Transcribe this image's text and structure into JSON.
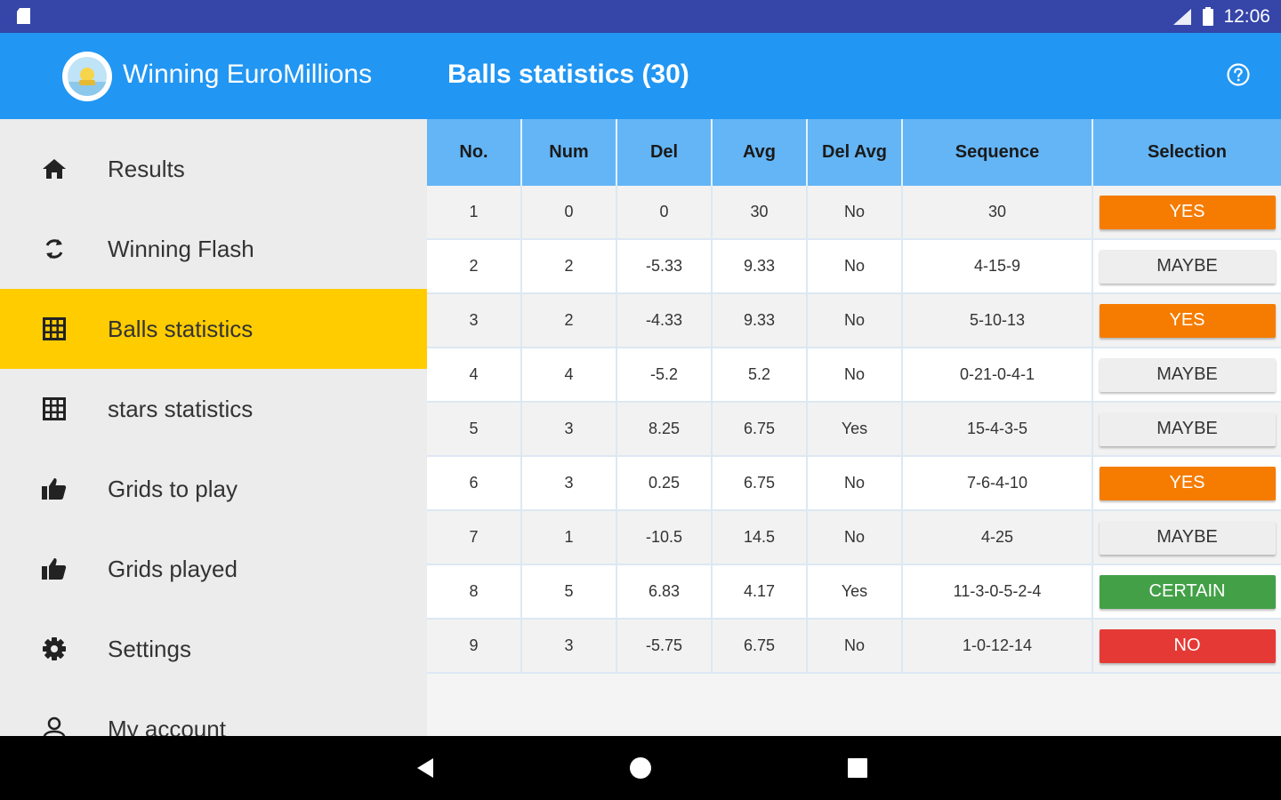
{
  "status_bar": {
    "time": "12:06"
  },
  "app_bar": {
    "app_name": "Winning EuroMillions",
    "screen_title": "Balls statistics (30)"
  },
  "drawer": {
    "items": [
      {
        "label": "Results",
        "icon": "home-icon"
      },
      {
        "label": "Winning Flash",
        "icon": "refresh-icon"
      },
      {
        "label": "Balls statistics",
        "icon": "grid-icon",
        "active": true
      },
      {
        "label": "stars statistics",
        "icon": "grid-icon"
      },
      {
        "label": "Grids to play",
        "icon": "thumb-up-icon"
      },
      {
        "label": "Grids played",
        "icon": "thumb-up-icon"
      },
      {
        "label": "Settings",
        "icon": "gear-icon"
      },
      {
        "label": "My account",
        "icon": "person-icon"
      }
    ]
  },
  "table": {
    "headers": [
      "No.",
      "Num",
      "Del",
      "Avg",
      "Del Avg",
      "Sequence",
      "Selection"
    ],
    "rows": [
      {
        "no": "1",
        "num": "0",
        "del": "0",
        "avg": "30",
        "del_avg": "No",
        "sequence": "30",
        "selection": "YES"
      },
      {
        "no": "2",
        "num": "2",
        "del": "-5.33",
        "avg": "9.33",
        "del_avg": "No",
        "sequence": "4-15-9",
        "selection": "MAYBE"
      },
      {
        "no": "3",
        "num": "2",
        "del": "-4.33",
        "avg": "9.33",
        "del_avg": "No",
        "sequence": "5-10-13",
        "selection": "YES"
      },
      {
        "no": "4",
        "num": "4",
        "del": "-5.2",
        "avg": "5.2",
        "del_avg": "No",
        "sequence": "0-21-0-4-1",
        "selection": "MAYBE"
      },
      {
        "no": "5",
        "num": "3",
        "del": "8.25",
        "avg": "6.75",
        "del_avg": "Yes",
        "sequence": "15-4-3-5",
        "selection": "MAYBE"
      },
      {
        "no": "6",
        "num": "3",
        "del": "0.25",
        "avg": "6.75",
        "del_avg": "No",
        "sequence": "7-6-4-10",
        "selection": "YES"
      },
      {
        "no": "7",
        "num": "1",
        "del": "-10.5",
        "avg": "14.5",
        "del_avg": "No",
        "sequence": "4-25",
        "selection": "MAYBE"
      },
      {
        "no": "8",
        "num": "5",
        "del": "6.83",
        "avg": "4.17",
        "del_avg": "Yes",
        "sequence": "11-3-0-5-2-4",
        "selection": "CERTAIN"
      },
      {
        "no": "9",
        "num": "3",
        "del": "-5.75",
        "avg": "6.75",
        "del_avg": "No",
        "sequence": "1-0-12-14",
        "selection": "NO"
      }
    ]
  },
  "colors": {
    "status_bar": "#3545a8",
    "app_bar": "#2196f3",
    "header": "#64b5f6",
    "active_item": "#ffcc00",
    "yes": "#f57c00",
    "maybe": "#eeeeee",
    "certain": "#43a047",
    "no": "#e53935"
  }
}
